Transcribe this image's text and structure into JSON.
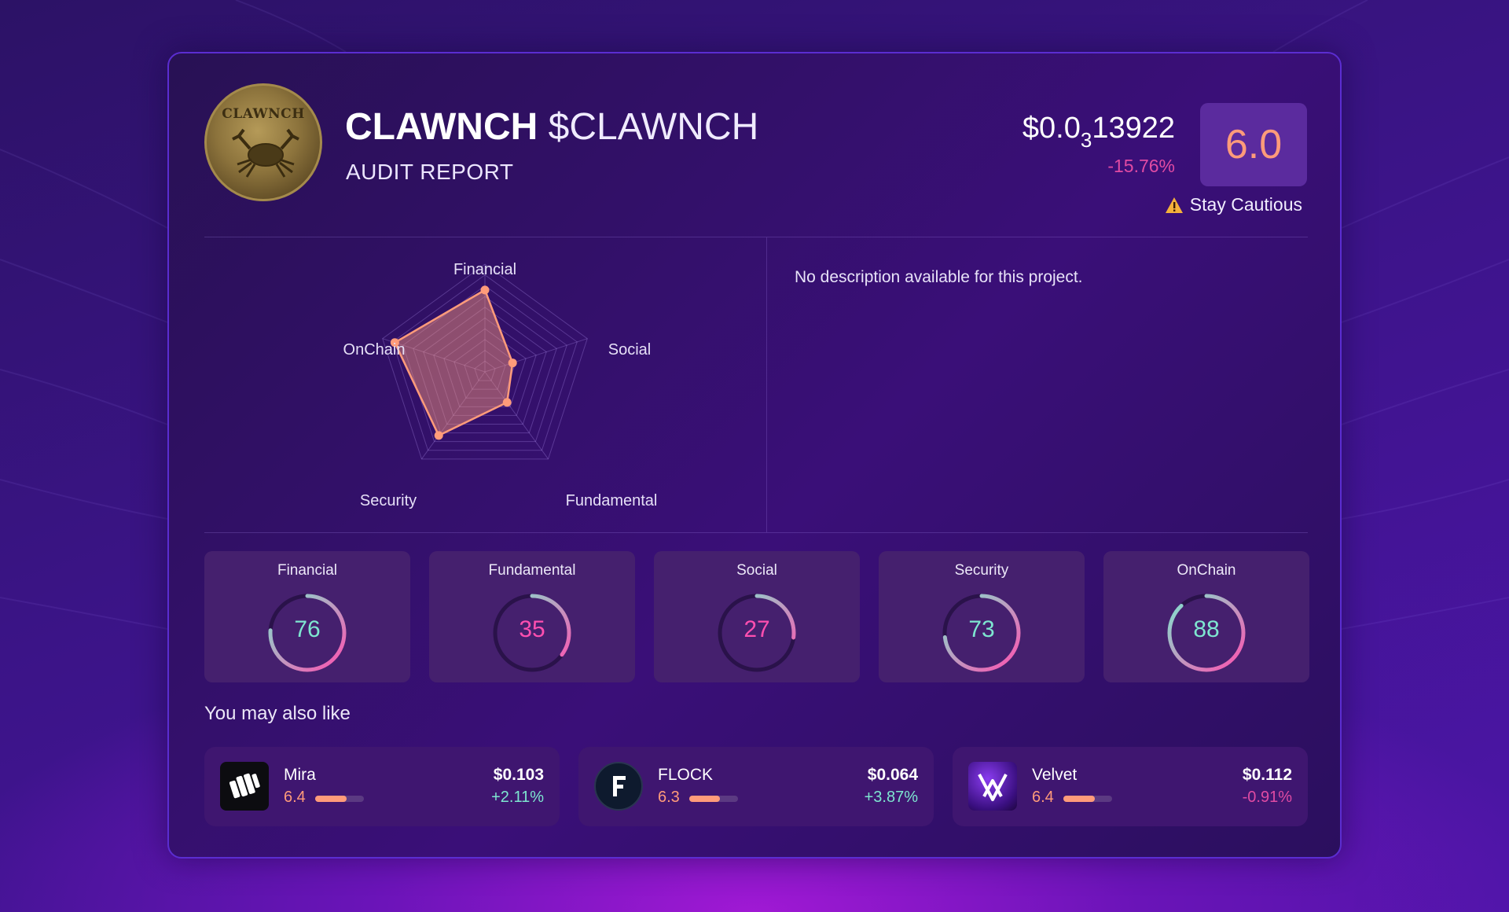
{
  "header": {
    "name": "CLAWNCH",
    "ticker": "$CLAWNCH",
    "subtitle": "AUDIT REPORT",
    "logo_text": "CLAWNCH",
    "price_prefix": "$0.0",
    "price_zeros": "3",
    "price_digits": "13922",
    "change": "-15.76%",
    "score": "6.0",
    "verdict": "Stay Cautious"
  },
  "radar": {
    "labels": {
      "financial": "Financial",
      "social": "Social",
      "fundamental": "Fundamental",
      "security": "Security",
      "onchain": "OnChain"
    }
  },
  "description": "No description available for this project.",
  "metrics": [
    {
      "label": "Financial",
      "value": 76,
      "color": "#7ee6d0"
    },
    {
      "label": "Fundamental",
      "value": 35,
      "color": "#ff4fb0"
    },
    {
      "label": "Social",
      "value": 27,
      "color": "#ff4fb0"
    },
    {
      "label": "Security",
      "value": 73,
      "color": "#7ee6d0"
    },
    {
      "label": "OnChain",
      "value": 88,
      "color": "#7ee6d0"
    }
  ],
  "recommendations_title": "You may also like",
  "recommendations": [
    {
      "name": "Mira",
      "score": "6.4",
      "score_fraction": 0.64,
      "price": "$0.103",
      "change": "+2.11%",
      "icon": "mira-logo"
    },
    {
      "name": "FLOCK",
      "score": "6.3",
      "score_fraction": 0.63,
      "price": "$0.064",
      "change": "+3.87%",
      "icon": "flock-logo"
    },
    {
      "name": "Velvet",
      "score": "6.4",
      "score_fraction": 0.64,
      "price": "$0.112",
      "change": "-0.91%",
      "icon": "velvet-logo"
    }
  ],
  "colors": {
    "accent_orange": "#ff9b7a",
    "positive": "#7ee6d0",
    "negative": "#e04ba3",
    "card_border": "#5b2dd1"
  }
}
